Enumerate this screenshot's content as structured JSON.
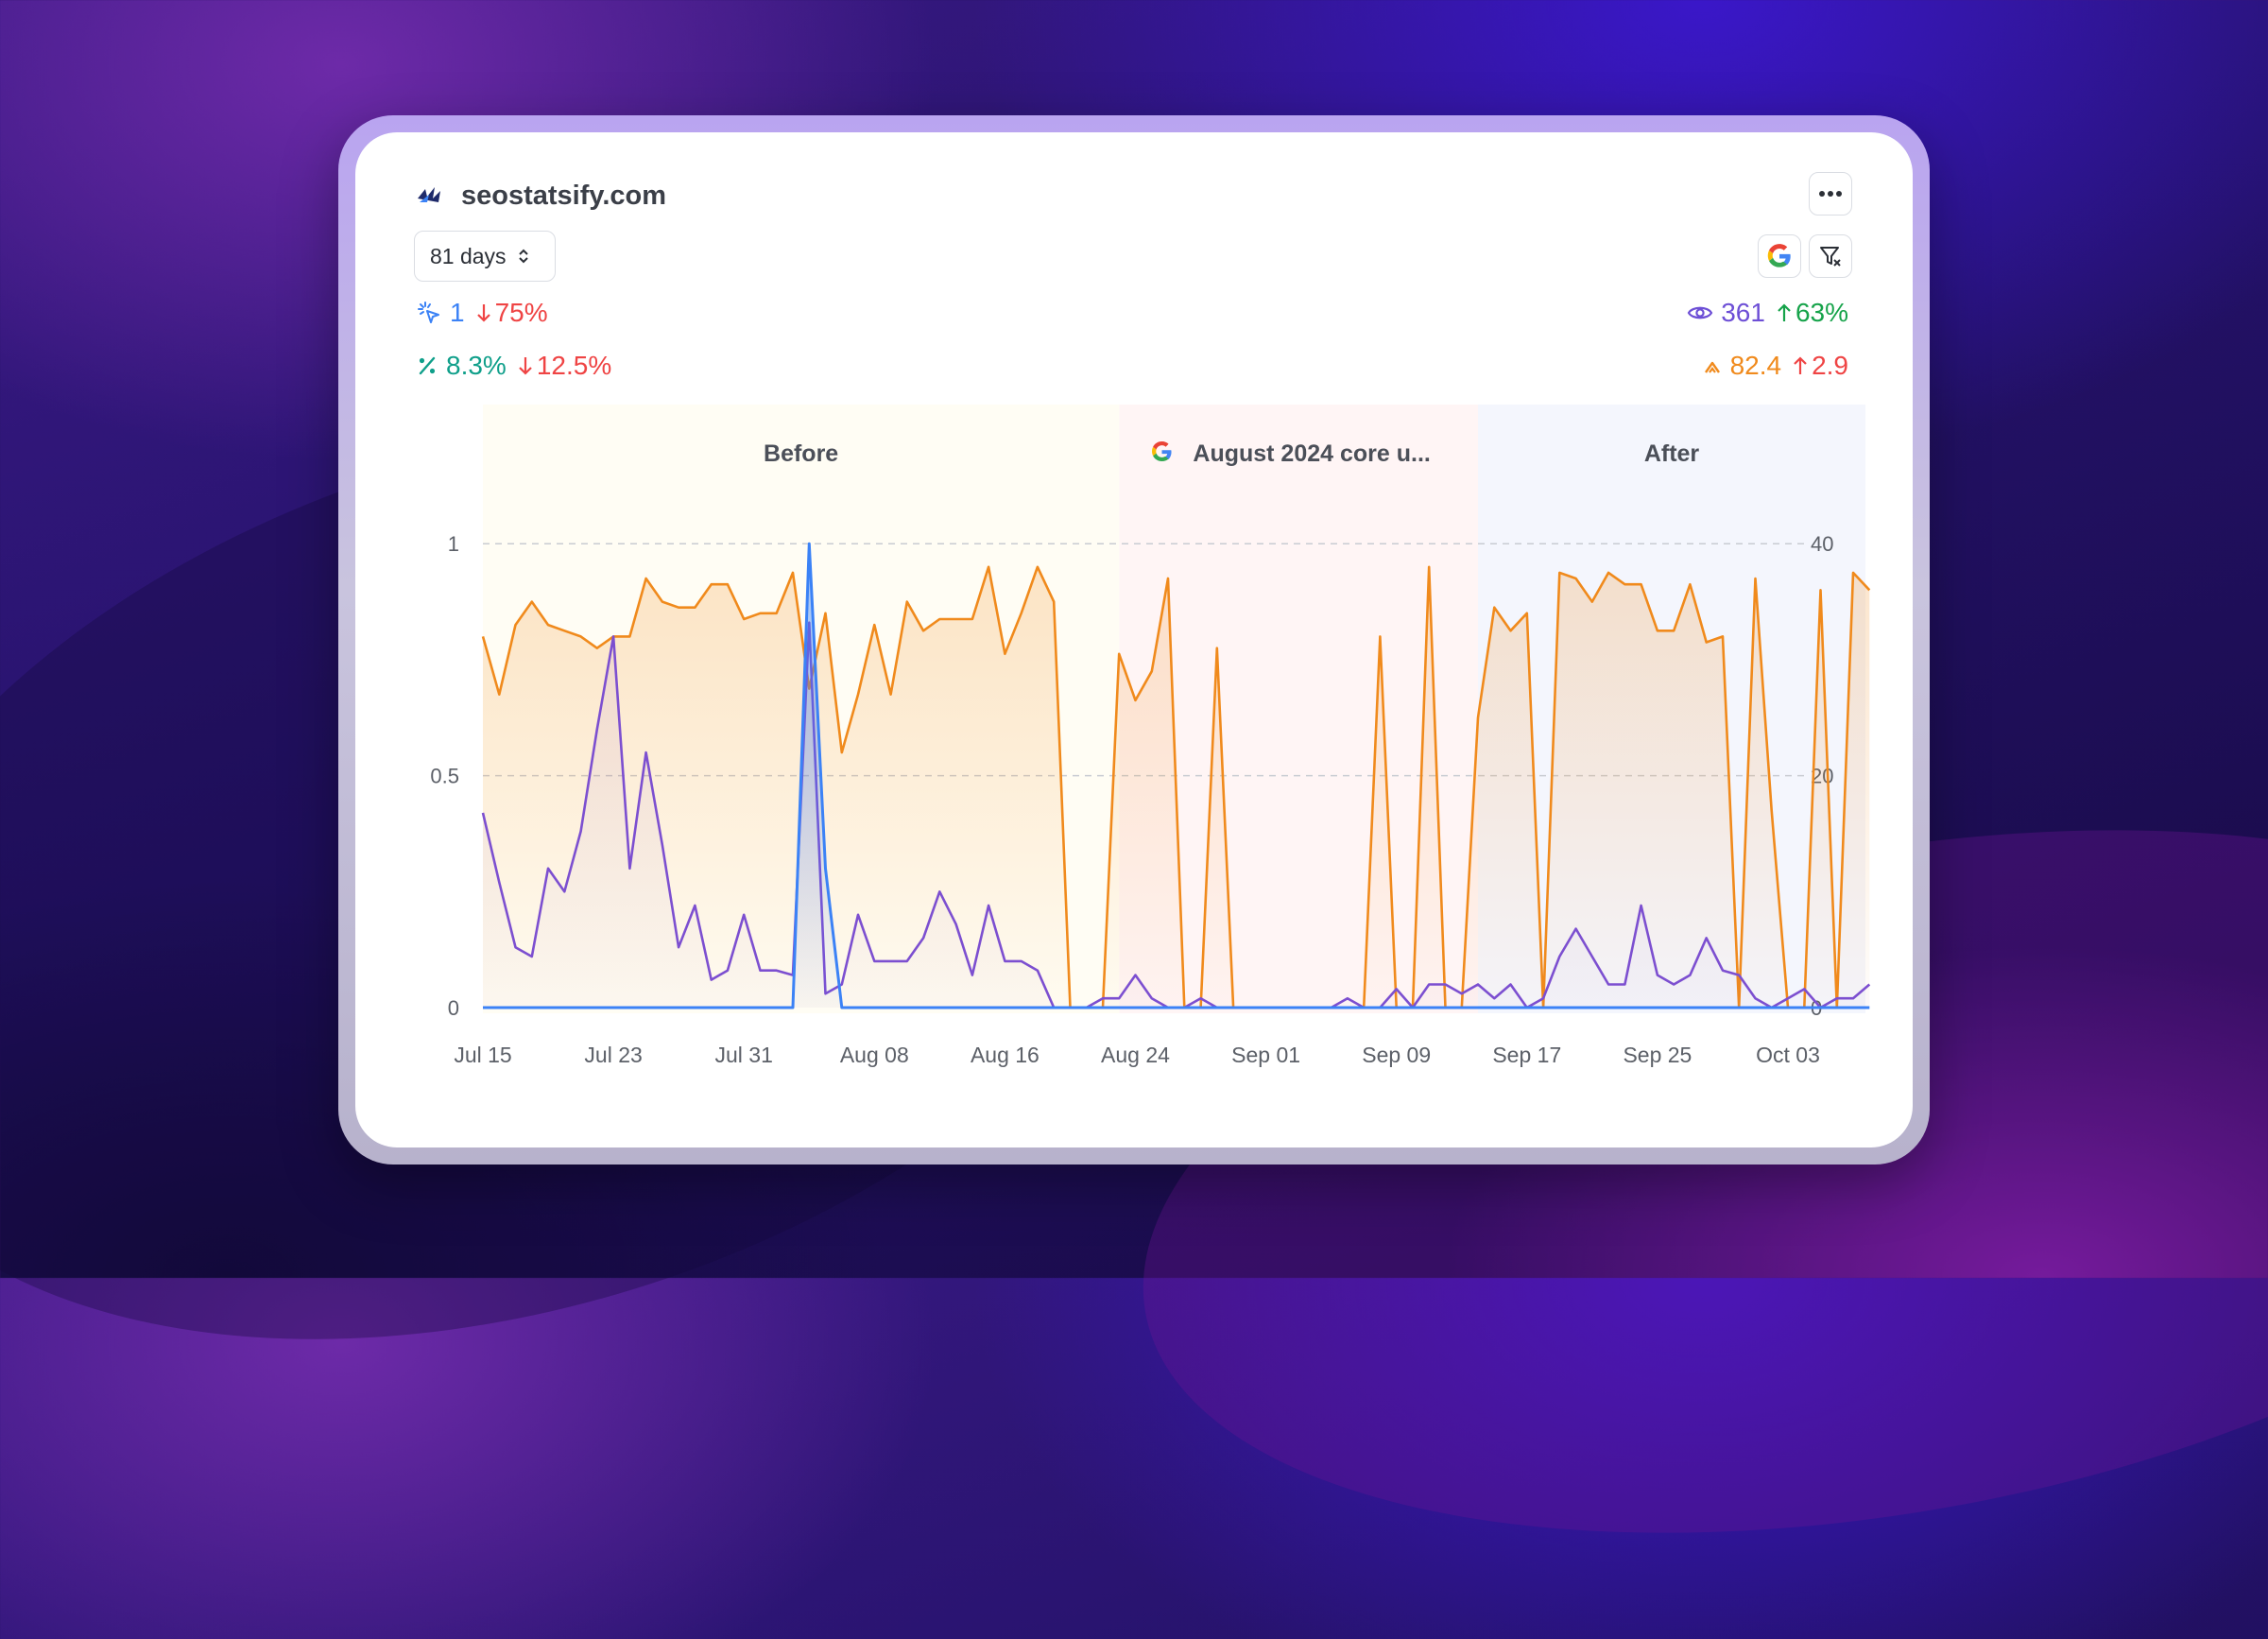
{
  "header": {
    "site_name": "seostatsify.com",
    "range_label": "81 days"
  },
  "metrics": {
    "clicks": {
      "value": "1",
      "change": "75%",
      "direction": "down",
      "color": "#3b82f6"
    },
    "ctr": {
      "value": "8.3%",
      "change": "12.5%",
      "direction": "down",
      "color": "#0f9f8a"
    },
    "impressions": {
      "value": "361",
      "change": "63%",
      "direction": "up",
      "color": "#6d4fd6"
    },
    "position": {
      "value": "82.4",
      "change": "2.9",
      "direction": "up",
      "color": "#f08a1c"
    }
  },
  "colors": {
    "down": "#ef4444",
    "up": "#16a34a",
    "clicks_line": "#3b82f6",
    "impressions_line": "#7c4fd0",
    "position_line": "#f08a1c",
    "before_band": "#fffdf4",
    "update_band": "#fff5f5",
    "after_band": "#f4f6fd"
  },
  "icons": {
    "site": "seostatsify-logo-icon",
    "more": "more-horizontal-icon",
    "range": "chevron-up-down-icon",
    "google": "google-g-icon",
    "filter": "filter-icon",
    "clicks": "cursor-click-icon",
    "ctr": "percent-icon",
    "impressions": "eye-icon",
    "position": "rank-chevron-icon"
  },
  "chart_data": {
    "type": "line",
    "bands": [
      {
        "label": "Before",
        "start": "2024-07-15",
        "end": "2024-08-23"
      },
      {
        "label": "August 2024 core u...",
        "start": "2024-08-23",
        "end": "2024-09-14",
        "icon": "google-g-icon"
      },
      {
        "label": "After",
        "start": "2024-09-14",
        "end": "2024-10-04"
      }
    ],
    "x_start": "2024-07-15",
    "x_end": "2024-10-03",
    "x_ticks": [
      "Jul 15",
      "Jul 23",
      "Jul 31",
      "Aug 08",
      "Aug 16",
      "Aug 24",
      "Sep 01",
      "Sep 09",
      "Sep 17",
      "Sep 25",
      "Oct 03"
    ],
    "y_left": {
      "range": [
        0,
        1.3
      ],
      "ticks": [
        "0",
        "0.5",
        "1"
      ]
    },
    "y_right": {
      "range": [
        0,
        52
      ],
      "ticks": [
        "0",
        "20",
        "40"
      ]
    },
    "grid": "dashed horizontal at left ticks 0.5 and 1",
    "series": [
      {
        "axis": "right",
        "values": [
          32,
          27,
          33,
          35,
          33,
          32.5,
          32,
          31,
          32,
          32,
          37,
          35,
          34.5,
          34.5,
          36.5,
          36.5,
          33.5,
          34,
          34,
          37.5,
          27.5,
          34,
          22,
          27,
          33,
          27,
          35,
          32.5,
          33.5,
          33.5,
          33.5,
          38,
          30.5,
          34,
          38,
          35,
          0,
          0,
          0,
          30.5,
          26.5,
          29,
          37,
          0,
          0,
          31,
          0,
          0,
          0,
          0,
          0,
          0,
          0,
          0,
          0,
          32,
          0,
          0,
          38,
          0,
          0,
          25,
          34.5,
          32.5,
          34,
          0,
          37.5,
          37,
          35,
          37.5,
          36.5,
          36.5,
          32.5,
          32.5,
          36.5,
          31.5,
          32,
          0,
          37,
          17,
          0,
          0,
          36,
          0,
          37.5,
          36
        ]
      },
      {
        "axis": "left",
        "values": [
          0.42,
          0.27,
          0.13,
          0.11,
          0.3,
          0.25,
          0.38,
          0.6,
          0.8,
          0.3,
          0.55,
          0.35,
          0.13,
          0.22,
          0.06,
          0.08,
          0.2,
          0.08,
          0.08,
          0.07,
          0.83,
          0.03,
          0.05,
          0.2,
          0.1,
          0.1,
          0.1,
          0.15,
          0.25,
          0.18,
          0.07,
          0.22,
          0.1,
          0.1,
          0.08,
          0,
          0,
          0,
          0.02,
          0.02,
          0.07,
          0.02,
          0,
          0,
          0.02,
          0,
          0,
          0,
          0,
          0,
          0,
          0,
          0,
          0.02,
          0,
          0,
          0.04,
          0,
          0.05,
          0.05,
          0.03,
          0.05,
          0.02,
          0.05,
          0,
          0.02,
          0.11,
          0.17,
          0.11,
          0.05,
          0.05,
          0.22,
          0.07,
          0.05,
          0.07,
          0.15,
          0.08,
          0.07,
          0.02,
          0,
          0.02,
          0.04,
          0,
          0.02,
          0.02,
          0.05
        ]
      },
      {
        "axis": "left",
        "values": [
          0,
          0,
          0,
          0,
          0,
          0,
          0,
          0,
          0,
          0,
          0,
          0,
          0,
          0,
          0,
          0,
          0,
          0,
          0,
          0,
          1.0,
          0.3,
          0,
          0,
          0,
          0,
          0,
          0,
          0,
          0,
          0,
          0,
          0,
          0,
          0,
          0,
          0,
          0,
          0,
          0,
          0,
          0,
          0,
          0,
          0,
          0,
          0,
          0,
          0,
          0,
          0,
          0,
          0,
          0,
          0,
          0,
          0,
          0,
          0,
          0,
          0,
          0,
          0,
          0,
          0,
          0,
          0,
          0,
          0,
          0,
          0,
          0,
          0,
          0,
          0,
          0,
          0,
          0,
          0,
          0,
          0,
          0,
          0,
          0,
          0,
          0
        ]
      }
    ]
  }
}
